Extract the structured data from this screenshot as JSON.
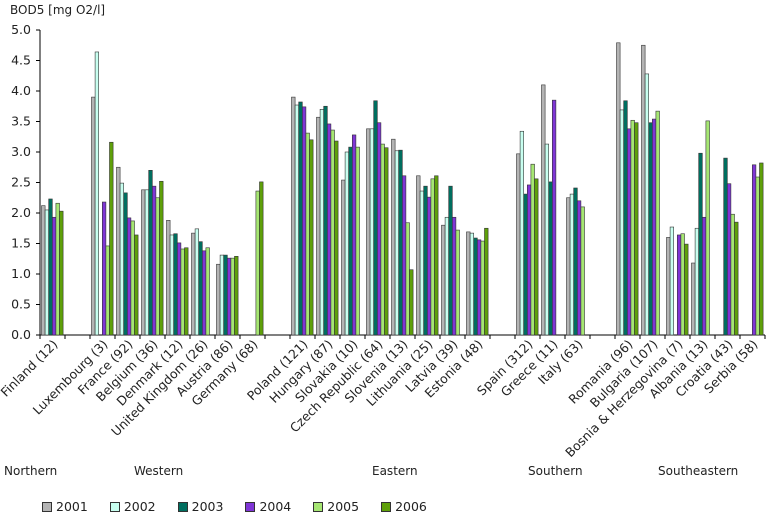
{
  "chart_data": {
    "type": "bar",
    "title": "",
    "ylabel": "BOD5 [mg O2/l]",
    "xlabel": "",
    "ylim": [
      0,
      5
    ],
    "yticks": [
      "0.0",
      "0.5",
      "1.0",
      "1.5",
      "2.0",
      "2.5",
      "3.0",
      "3.5",
      "4.0",
      "4.5",
      "5.0"
    ],
    "grid": false,
    "legend_position": "bottom",
    "series_names": [
      "2001",
      "2002",
      "2003",
      "2004",
      "2005",
      "2006"
    ],
    "series_colors": [
      "#b4b4b4",
      "#c8fff0",
      "#006e5f",
      "#7f35d6",
      "#a6e673",
      "#5fa00a"
    ],
    "categories": [
      {
        "label": "Finland (12)",
        "values": [
          2.12,
          2.05,
          2.23,
          1.93,
          2.16,
          2.03
        ]
      },
      null,
      {
        "label": "Luxembourg (3)",
        "values": [
          3.9,
          4.64,
          null,
          2.18,
          1.46,
          3.16
        ]
      },
      {
        "label": "France (92)",
        "values": [
          2.75,
          2.49,
          2.33,
          1.92,
          1.87,
          1.64
        ]
      },
      {
        "label": "Belgium (36)",
        "values": [
          2.38,
          2.38,
          2.7,
          2.44,
          2.25,
          2.52
        ]
      },
      {
        "label": "Denmark (12)",
        "values": [
          1.88,
          1.64,
          1.66,
          1.51,
          1.41,
          1.43
        ]
      },
      {
        "label": "United Kingdom (26)",
        "values": [
          1.67,
          1.74,
          1.53,
          1.38,
          1.43,
          null
        ]
      },
      {
        "label": "Austria (86)",
        "values": [
          1.16,
          1.31,
          1.31,
          1.26,
          1.26,
          1.29
        ]
      },
      {
        "label": "Germany (68)",
        "values": [
          null,
          null,
          null,
          null,
          2.36,
          2.51
        ]
      },
      null,
      {
        "label": "Poland (121)",
        "values": [
          3.9,
          3.77,
          3.82,
          3.74,
          3.31,
          3.2
        ]
      },
      {
        "label": "Hungary (87)",
        "values": [
          3.57,
          3.7,
          3.75,
          3.46,
          3.36,
          3.18
        ]
      },
      {
        "label": "Slovakia (10)",
        "values": [
          2.54,
          3.0,
          3.08,
          3.28,
          3.08,
          null
        ]
      },
      {
        "label": "Czech Republic (64)",
        "values": [
          3.38,
          3.38,
          3.84,
          3.48,
          3.13,
          3.07
        ]
      },
      {
        "label": "Slovenia (13)",
        "values": [
          3.21,
          3.02,
          3.03,
          2.61,
          1.84,
          1.07
        ]
      },
      {
        "label": "Lithuania (25)",
        "values": [
          2.61,
          2.36,
          2.44,
          2.26,
          2.56,
          2.61
        ]
      },
      {
        "label": "Latvia (39)",
        "values": [
          1.8,
          1.93,
          2.44,
          1.93,
          1.72,
          null
        ]
      },
      {
        "label": "Estonia (48)",
        "values": [
          1.69,
          1.67,
          1.59,
          1.56,
          1.54,
          1.75
        ]
      },
      null,
      {
        "label": "Spain (312)",
        "values": [
          2.97,
          3.34,
          2.31,
          2.46,
          2.8,
          2.56
        ]
      },
      {
        "label": "Greece (11)",
        "values": [
          4.1,
          3.13,
          2.51,
          3.85,
          null,
          null
        ]
      },
      {
        "label": "Italy (63)",
        "values": [
          2.25,
          2.31,
          2.41,
          2.2,
          2.1,
          null
        ]
      },
      null,
      {
        "label": "Romania (96)",
        "values": [
          4.79,
          3.69,
          3.84,
          3.38,
          3.52,
          3.48
        ]
      },
      {
        "label": "Bulgaria (107)",
        "values": [
          4.75,
          4.28,
          3.48,
          3.54,
          3.67,
          null
        ]
      },
      {
        "label": "Bosnia & Herzegovina (7)",
        "values": [
          1.6,
          1.77,
          null,
          1.64,
          1.66,
          1.49
        ]
      },
      {
        "label": "Albania (13)",
        "values": [
          1.18,
          1.75,
          2.98,
          1.93,
          3.51,
          null
        ]
      },
      {
        "label": "Croatia (43)",
        "values": [
          null,
          null,
          2.9,
          2.48,
          1.98,
          1.85
        ]
      },
      {
        "label": "Serbia (58)",
        "values": [
          null,
          null,
          null,
          2.79,
          2.59,
          2.82
        ]
      }
    ],
    "regions": [
      {
        "label": "Northern"
      },
      {
        "label": "Western"
      },
      {
        "label": "Eastern"
      },
      {
        "label": "Southern"
      },
      {
        "label": "Southeastern"
      }
    ]
  }
}
